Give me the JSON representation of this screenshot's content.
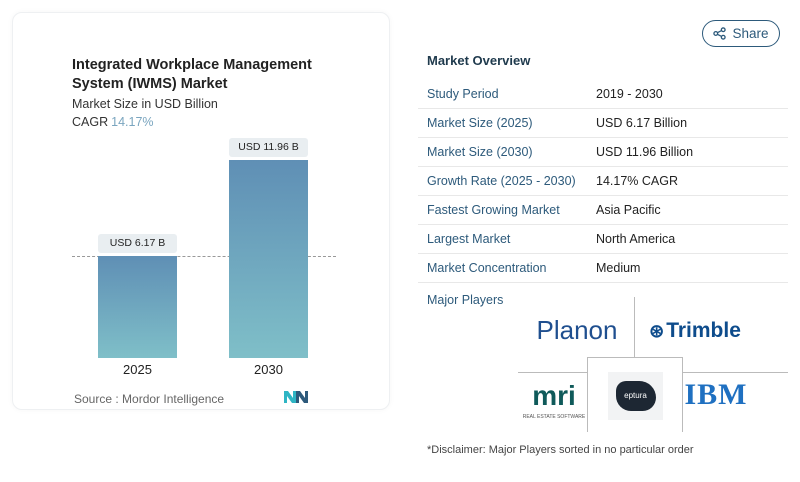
{
  "chart_card": {
    "title": "Integrated Workplace Management System (IWMS) Market",
    "subtitle": "Market Size in USD Billion",
    "cagr_label": "CAGR",
    "cagr_value": "14.17%",
    "source": "Source :  Mordor Intelligence",
    "logo_text": "MN"
  },
  "chart_data": {
    "type": "bar",
    "categories": [
      "2025",
      "2030"
    ],
    "values": [
      6.17,
      11.96
    ],
    "data_labels": [
      "USD 6.17 B",
      "USD 11.96 B"
    ],
    "ylabel": "Market Size in USD Billion",
    "bar_colors": [
      "#5f8fb5",
      "#7fbfc8"
    ],
    "reference_line": "dashed at 2025 value"
  },
  "share": {
    "label": "Share",
    "icon": "share-icon"
  },
  "overview": {
    "title": "Market Overview",
    "rows": [
      {
        "k": "Study Period",
        "v": "2019 - 2030"
      },
      {
        "k": "Market Size (2025)",
        "v": "USD 6.17 Billion"
      },
      {
        "k": "Market Size (2030)",
        "v": "USD 11.96 Billion"
      },
      {
        "k": "Growth Rate (2025 - 2030)",
        "v": "14.17% CAGR"
      },
      {
        "k": "Fastest Growing Market",
        "v": "Asia Pacific"
      },
      {
        "k": "Largest Market",
        "v": "North America"
      },
      {
        "k": "Market Concentration",
        "v": "Medium"
      }
    ],
    "major_players_label": "Major Players",
    "players": [
      "Planon",
      "Trimble",
      "mri",
      "eptura",
      "IBM"
    ],
    "mri_tagline": "REAL ESTATE SOFTWARE",
    "disclaimer": "*Disclaimer: Major Players sorted in no particular order"
  }
}
